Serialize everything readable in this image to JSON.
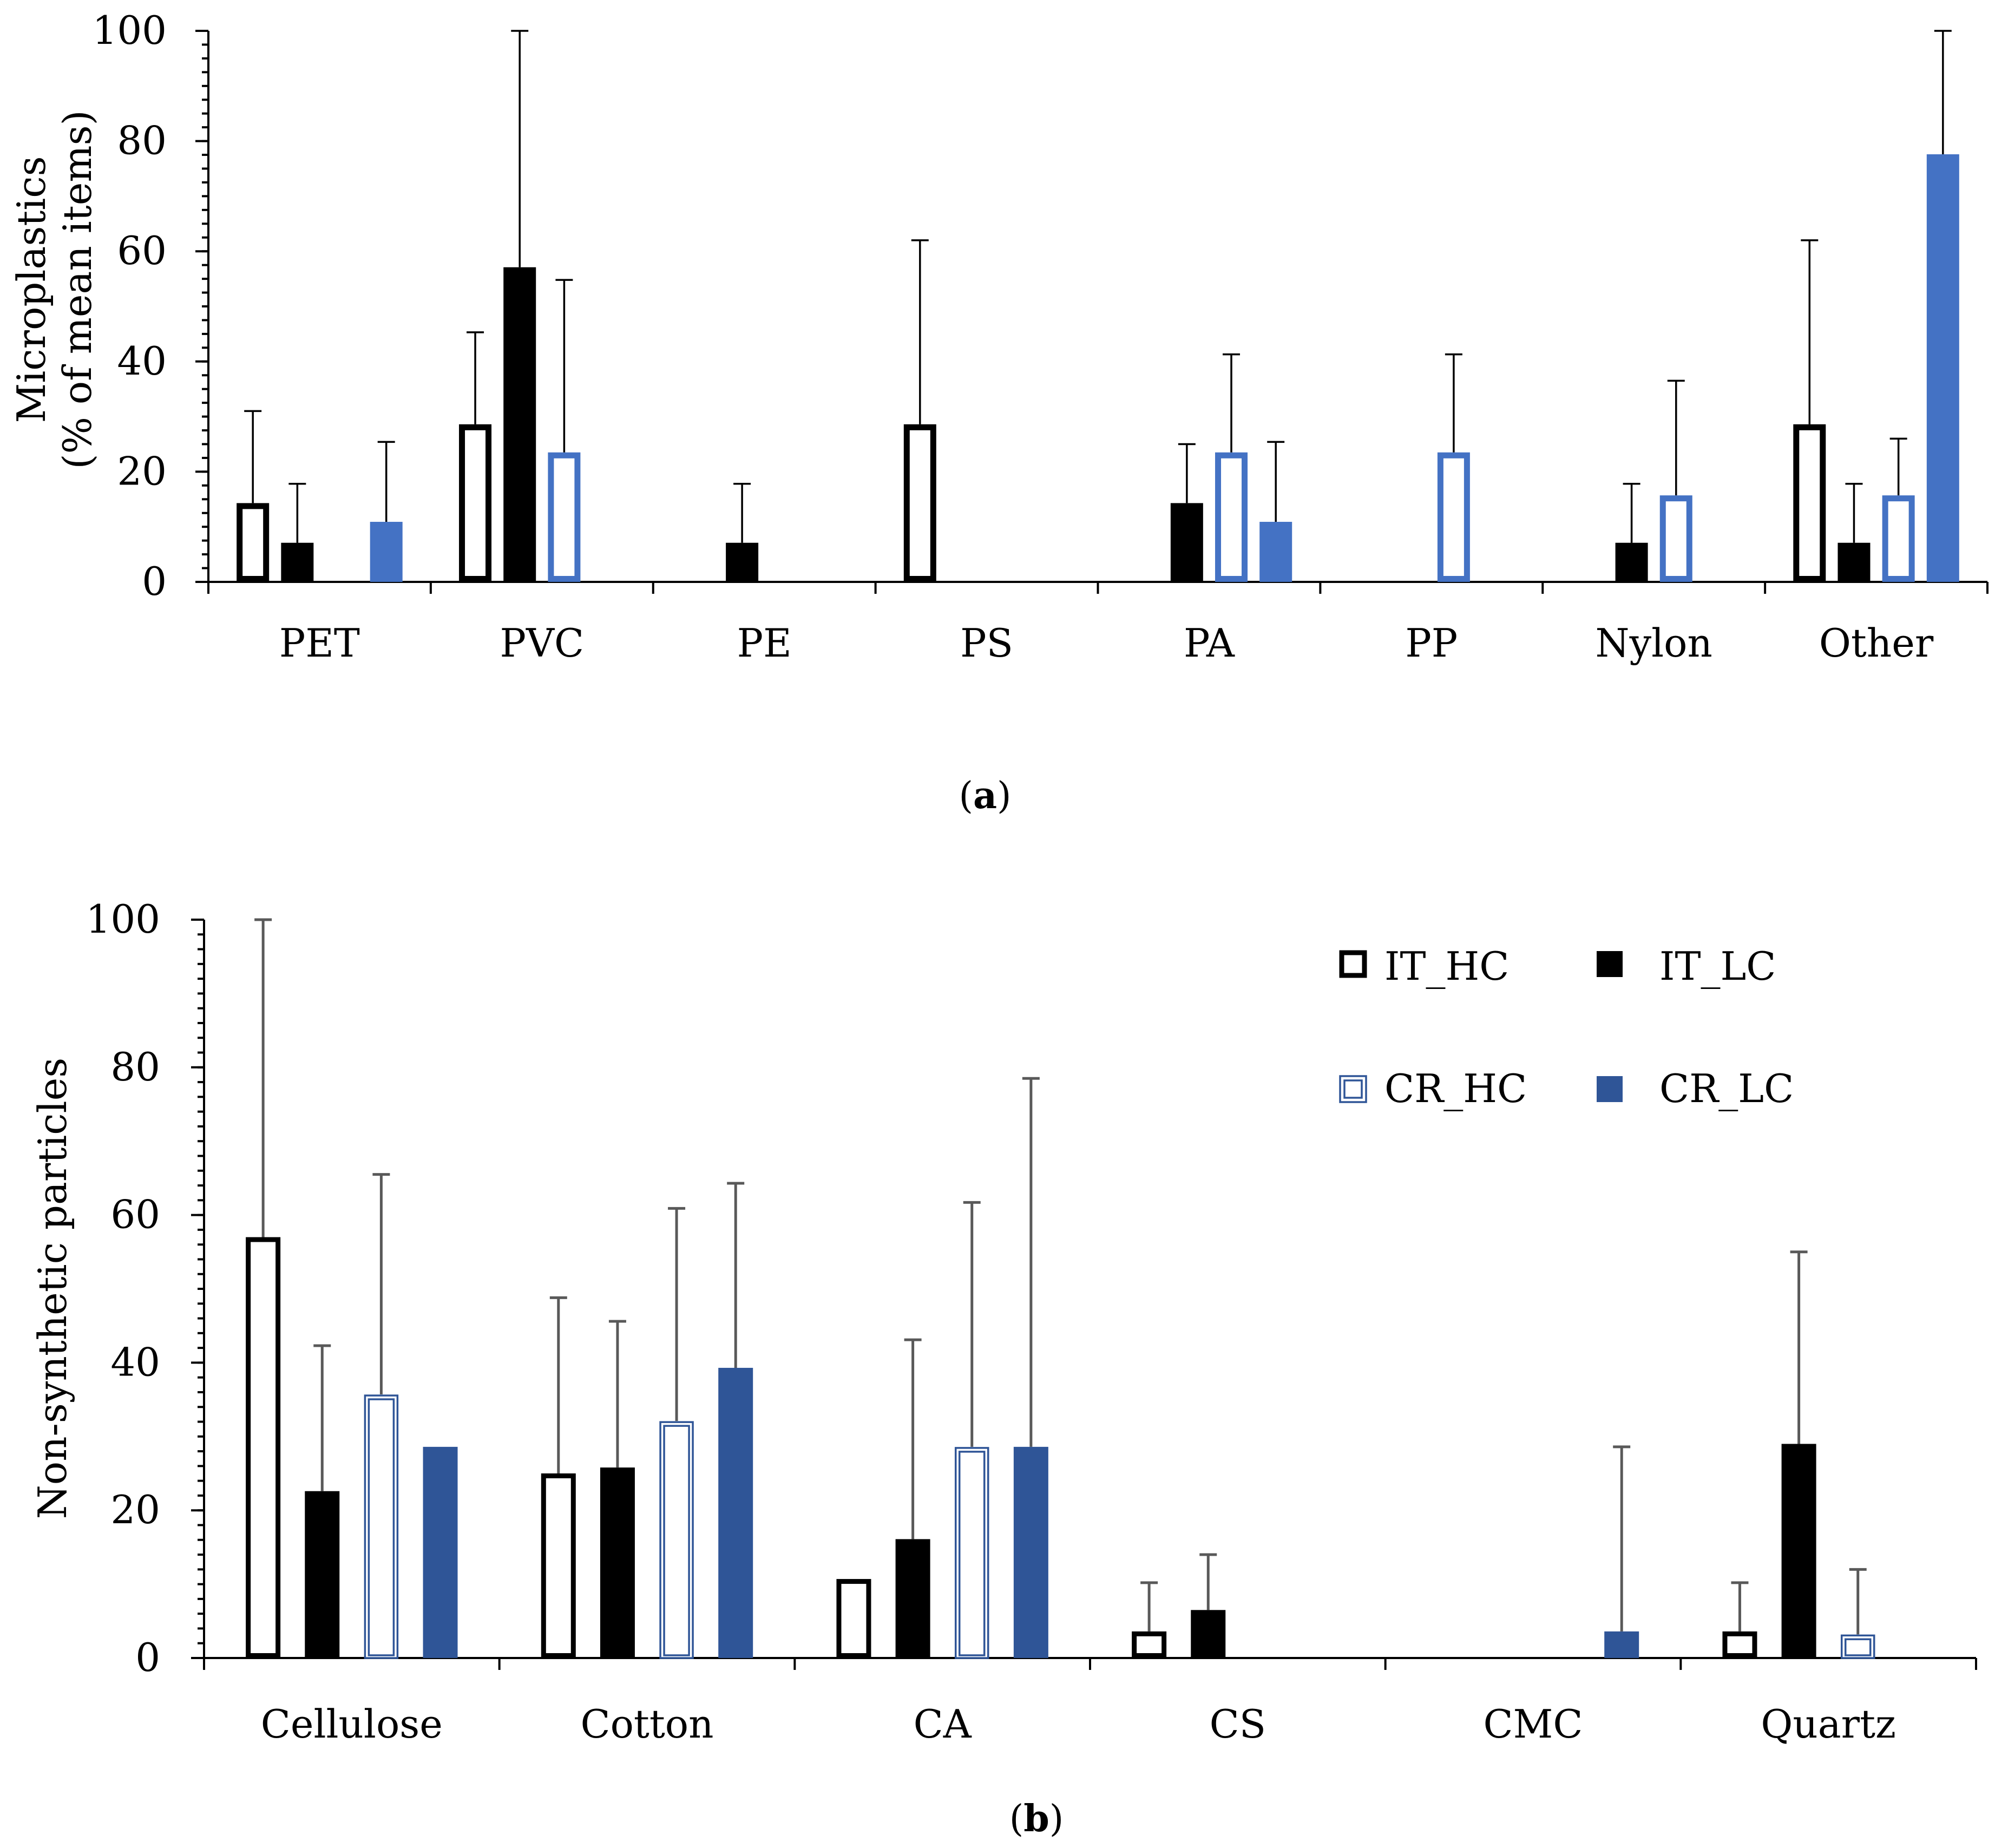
{
  "colors": {
    "it": "#000000",
    "cr_a": "#4472C4",
    "cr_b": "#2F5597",
    "err_a": "#000000",
    "err_b": "#595959"
  },
  "chart_data": [
    {
      "id": "a",
      "type": "bar",
      "caption_letter": "a",
      "ylabel_line1": "Microplastics",
      "ylabel_line2": "(% of mean items)",
      "xlabel": "",
      "ylim": [
        0,
        100
      ],
      "yticks": [
        0,
        20,
        40,
        60,
        80,
        100
      ],
      "categories": [
        "PET",
        "PVC",
        "PE",
        "PS",
        "PA",
        "PP",
        "Nylon",
        "Other"
      ],
      "series": [
        {
          "name": "IT_HC",
          "style": "hollow",
          "color": "#000000",
          "values": [
            14.3,
            28.6,
            0,
            28.6,
            0,
            0,
            0,
            28.6
          ],
          "errors": [
            31,
            45.3,
            null,
            62,
            null,
            null,
            null,
            62
          ]
        },
        {
          "name": "IT_LC",
          "style": "solid",
          "color": "#000000",
          "values": [
            7.1,
            57.1,
            7.1,
            0,
            14.3,
            0,
            7.1,
            7.1
          ],
          "errors": [
            17.8,
            100,
            17.8,
            null,
            25,
            null,
            17.8,
            17.8
          ]
        },
        {
          "name": "CR_HC",
          "style": "hollow",
          "color": "#4472C4",
          "values": [
            0,
            23.5,
            0,
            0,
            23.5,
            23.5,
            15.7,
            15.7
          ],
          "errors": [
            null,
            54.8,
            null,
            null,
            41.3,
            41.3,
            36.5,
            26
          ]
        },
        {
          "name": "CR_LC",
          "style": "solid",
          "color": "#4472C4",
          "values": [
            10.9,
            0,
            0,
            0,
            10.9,
            0,
            0,
            77.6
          ],
          "errors": [
            25.4,
            null,
            null,
            null,
            25.4,
            null,
            null,
            100
          ]
        }
      ]
    },
    {
      "id": "b",
      "type": "bar",
      "caption_letter": "b",
      "ylabel_line1": "Non-synthetic particles",
      "ylabel_line2": "",
      "xlabel": "",
      "ylim": [
        0,
        100
      ],
      "yticks": [
        0,
        20,
        40,
        60,
        80,
        100
      ],
      "legend_position": "top-right",
      "categories": [
        "Cellulose",
        "Cotton",
        "CA",
        "CS",
        "CMC",
        "Quartz"
      ],
      "series": [
        {
          "name": "IT_HC",
          "style": "hollow",
          "color": "#000000",
          "values": [
            57,
            25,
            10.7,
            3.6,
            0,
            3.6
          ],
          "errors": [
            100,
            48.8,
            null,
            10.2,
            null,
            10.2
          ]
        },
        {
          "name": "IT_LC",
          "style": "solid",
          "color": "#000000",
          "values": [
            22.6,
            25.8,
            16.1,
            6.5,
            0,
            29
          ],
          "errors": [
            42.3,
            45.6,
            43.1,
            14,
            null,
            55
          ]
        },
        {
          "name": "CR_HC",
          "style": "double",
          "color": "#2F5597",
          "values": [
            35.7,
            32.1,
            28.6,
            0,
            0,
            3.2
          ],
          "errors": [
            65.5,
            60.9,
            61.7,
            null,
            null,
            12
          ]
        },
        {
          "name": "CR_LC",
          "style": "solid",
          "color": "#2F5597",
          "values": [
            28.6,
            39.3,
            28.6,
            0,
            3.6,
            0
          ],
          "errors": [
            null,
            64.3,
            78.5,
            null,
            28.6,
            null
          ]
        }
      ]
    }
  ]
}
